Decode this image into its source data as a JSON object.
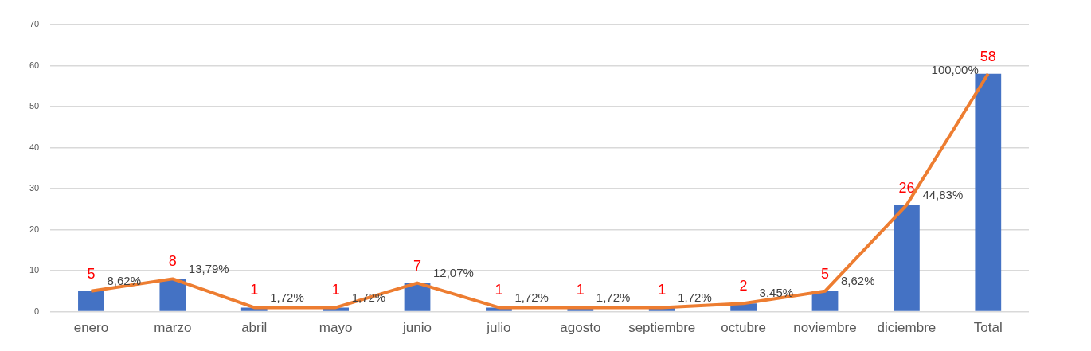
{
  "chart_data": {
    "type": "bar",
    "categories": [
      "enero",
      "marzo",
      "abril",
      "mayo",
      "junio",
      "julio",
      "agosto",
      "septiembre",
      "octubre",
      "noviembre",
      "diciembre",
      "Total"
    ],
    "series": [
      {
        "color": "#4472c4",
        "values": [
          5,
          8,
          1,
          1,
          7,
          1,
          1,
          1,
          2,
          5,
          26,
          58
        ]
      },
      {
        "type": "line",
        "color": "#ed7d31",
        "values": [
          5,
          8,
          1,
          1,
          7,
          1,
          1,
          1,
          2,
          5,
          26,
          58
        ],
        "value_labels": [
          "5",
          "8",
          "1",
          "1",
          "7",
          "1",
          "1",
          "1",
          "2",
          "5",
          "26",
          "58"
        ]
      }
    ],
    "annotations": [
      {
        "text": "8,62%",
        "x": "enero",
        "y": 5
      },
      {
        "text": "13,79%",
        "x": "marzo",
        "y": 8
      },
      {
        "text": "1,72%",
        "x": "abril",
        "y": 1
      },
      {
        "text": "1,72%",
        "x": "mayo",
        "y": 1
      },
      {
        "text": "12,07%",
        "x": "junio",
        "y": 7
      },
      {
        "text": "1,72%",
        "x": "julio",
        "y": 1
      },
      {
        "text": "1,72%",
        "x": "agosto",
        "y": 1
      },
      {
        "text": "1,72%",
        "x": "septiembre",
        "y": 1
      },
      {
        "text": "3,45%",
        "x": "octubre",
        "y": 2
      },
      {
        "text": "8,62%",
        "x": "noviembre",
        "y": 5
      },
      {
        "text": "44,83%",
        "x": "diciembre",
        "y": 26
      },
      {
        "text": "100,00%",
        "x": "Total",
        "y": 58
      }
    ],
    "ylim": [
      0,
      70
    ],
    "yticks": [
      0,
      10,
      20,
      30,
      40,
      50,
      60,
      70
    ],
    "grid": "y",
    "legend": false,
    "marker": "none"
  }
}
